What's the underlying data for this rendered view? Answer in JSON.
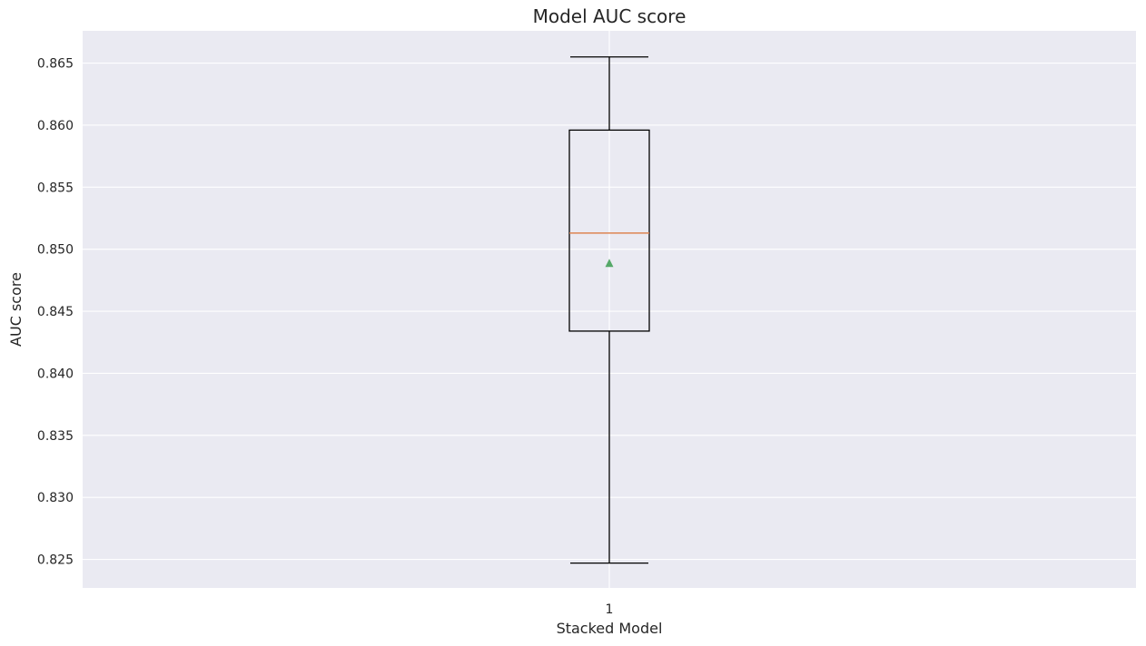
{
  "chart_data": {
    "type": "box",
    "title": "Model AUC score",
    "xlabel": "Stacked Model",
    "ylabel": "AUC score",
    "categories": [
      "1"
    ],
    "ylim": [
      0.8227,
      0.8676
    ],
    "yticks": [
      "0.825",
      "0.830",
      "0.835",
      "0.840",
      "0.845",
      "0.850",
      "0.855",
      "0.860",
      "0.865"
    ],
    "grid": true,
    "boxes": [
      {
        "category": "1",
        "whisker_low": 0.8247,
        "q1": 0.8434,
        "median": 0.8513,
        "q3": 0.8596,
        "whisker_high": 0.8655,
        "mean": 0.8489
      }
    ],
    "colors": {
      "plot_background": "#eaeaf2",
      "grid": "#ffffff",
      "box": "#000000",
      "median": "#dd8452",
      "mean": "#55a868",
      "text": "#262626"
    }
  }
}
